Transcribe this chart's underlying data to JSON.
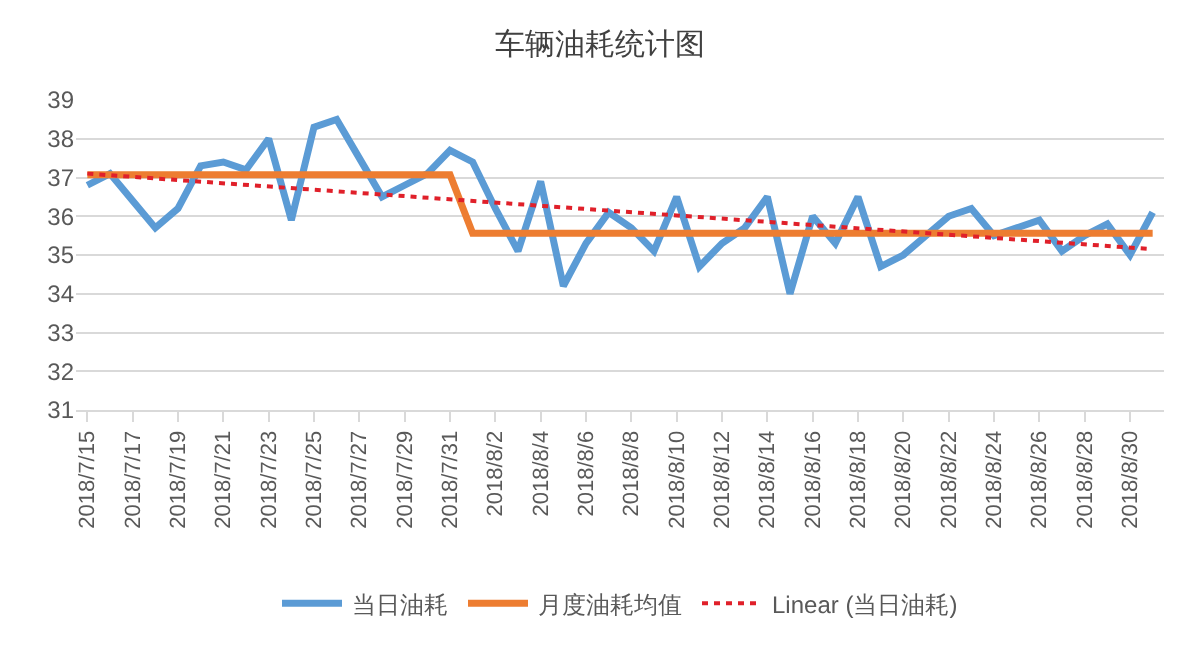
{
  "chart_data": {
    "type": "line",
    "title": "车辆油耗统计图",
    "x": [
      "2018-07-15",
      "2018-07-16",
      "2018-07-17",
      "2018-07-18",
      "2018-07-19",
      "2018-07-20",
      "2018-07-21",
      "2018-07-22",
      "2018-07-23",
      "2018-07-24",
      "2018-07-25",
      "2018-07-26",
      "2018-07-27",
      "2018-07-28",
      "2018-07-29",
      "2018-07-30",
      "2018-07-31",
      "2018-08-01",
      "2018-08-02",
      "2018-08-03",
      "2018-08-04",
      "2018-08-05",
      "2018-08-06",
      "2018-08-07",
      "2018-08-08",
      "2018-08-09",
      "2018-08-10",
      "2018-08-11",
      "2018-08-12",
      "2018-08-13",
      "2018-08-14",
      "2018-08-15",
      "2018-08-16",
      "2018-08-17",
      "2018-08-18",
      "2018-08-19",
      "2018-08-20",
      "2018-08-21",
      "2018-08-22",
      "2018-08-23",
      "2018-08-24",
      "2018-08-25",
      "2018-08-26",
      "2018-08-27",
      "2018-08-28",
      "2018-08-29",
      "2018-08-30",
      "2018-08-31"
    ],
    "series": [
      {
        "name": "当日油耗",
        "color": "#5b9bd5",
        "line_style": "solid",
        "values": [
          36.8,
          37.1,
          36.4,
          35.7,
          36.2,
          37.3,
          37.4,
          37.2,
          38.0,
          35.9,
          38.3,
          38.5,
          37.5,
          36.5,
          36.8,
          37.1,
          37.7,
          37.4,
          36.2,
          35.1,
          36.9,
          34.2,
          35.3,
          36.1,
          35.7,
          35.1,
          36.5,
          34.7,
          35.3,
          35.7,
          36.5,
          34.0,
          36.0,
          35.3,
          36.5,
          34.7,
          35.0,
          35.5,
          36.0,
          36.2,
          35.5,
          35.7,
          35.9,
          35.1,
          35.5,
          35.8,
          35.0,
          36.1
        ]
      },
      {
        "name": "月度油耗均值",
        "color": "#ed7d31",
        "line_style": "solid",
        "values": [
          37.07,
          37.07,
          37.07,
          37.07,
          37.07,
          37.07,
          37.07,
          37.07,
          37.07,
          37.07,
          37.07,
          37.07,
          37.07,
          37.07,
          37.07,
          37.07,
          37.07,
          35.56,
          35.56,
          35.56,
          35.56,
          35.56,
          35.56,
          35.56,
          35.56,
          35.56,
          35.56,
          35.56,
          35.56,
          35.56,
          35.56,
          35.56,
          35.56,
          35.56,
          35.56,
          35.56,
          35.56,
          35.56,
          35.56,
          35.56,
          35.56,
          35.56,
          35.56,
          35.56,
          35.56,
          35.56,
          35.56,
          35.56
        ]
      },
      {
        "name": "Linear (当日油耗)",
        "color": "#e0202a",
        "line_style": "dotted",
        "x": [
          "2018-07-15",
          "2018-08-31"
        ],
        "values": [
          37.1,
          35.15
        ]
      }
    ],
    "xlim": [
      "2018-07-14T12:00",
      "2018-08-31T12:00"
    ],
    "xticks": [
      {
        "value": "2018-07-15",
        "label": "2018/7/15"
      },
      {
        "value": "2018-07-17",
        "label": "2018/7/17"
      },
      {
        "value": "2018-07-19",
        "label": "2018/7/19"
      },
      {
        "value": "2018-07-21",
        "label": "2018/7/21"
      },
      {
        "value": "2018-07-23",
        "label": "2018/7/23"
      },
      {
        "value": "2018-07-25",
        "label": "2018/7/25"
      },
      {
        "value": "2018-07-27",
        "label": "2018/7/27"
      },
      {
        "value": "2018-07-29",
        "label": "2018/7/29"
      },
      {
        "value": "2018-07-31",
        "label": "2018/7/31"
      },
      {
        "value": "2018-08-02",
        "label": "2018/8/2"
      },
      {
        "value": "2018-08-04",
        "label": "2018/8/4"
      },
      {
        "value": "2018-08-06",
        "label": "2018/8/6"
      },
      {
        "value": "2018-08-08",
        "label": "2018/8/8"
      },
      {
        "value": "2018-08-10",
        "label": "2018/8/10"
      },
      {
        "value": "2018-08-12",
        "label": "2018/8/12"
      },
      {
        "value": "2018-08-14",
        "label": "2018/8/14"
      },
      {
        "value": "2018-08-16",
        "label": "2018/8/16"
      },
      {
        "value": "2018-08-18",
        "label": "2018/8/18"
      },
      {
        "value": "2018-08-20",
        "label": "2018/8/20"
      },
      {
        "value": "2018-08-22",
        "label": "2018/8/22"
      },
      {
        "value": "2018-08-24",
        "label": "2018/8/24"
      },
      {
        "value": "2018-08-26",
        "label": "2018/8/26"
      },
      {
        "value": "2018-08-28",
        "label": "2018/8/28"
      },
      {
        "value": "2018-08-30",
        "label": "2018/8/30"
      }
    ],
    "ylim": [
      31,
      39
    ],
    "yticks": [
      31,
      32,
      33,
      34,
      35,
      36,
      37,
      38,
      39
    ],
    "grid": "y",
    "legend": "bottom",
    "marker": "none"
  }
}
